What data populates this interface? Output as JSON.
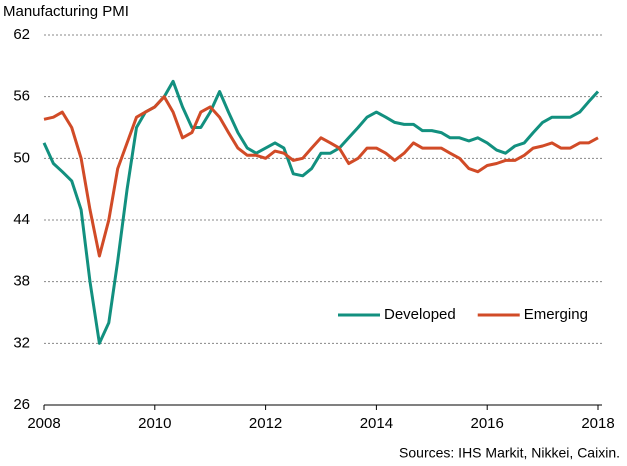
{
  "chart_data": {
    "type": "line",
    "title": "Manufacturing  PMI",
    "source": "Sources: IHS Markit, Nikkei, Caixin.",
    "x": [
      2008,
      2008.17,
      2008.33,
      2008.5,
      2008.67,
      2008.83,
      2009,
      2009.17,
      2009.33,
      2009.5,
      2009.67,
      2009.83,
      2010,
      2010.17,
      2010.33,
      2010.5,
      2010.67,
      2010.83,
      2011,
      2011.17,
      2011.33,
      2011.5,
      2011.67,
      2011.83,
      2012,
      2012.17,
      2012.33,
      2012.5,
      2012.67,
      2012.83,
      2013,
      2013.17,
      2013.33,
      2013.5,
      2013.67,
      2013.83,
      2014,
      2014.17,
      2014.33,
      2014.5,
      2014.67,
      2014.83,
      2015,
      2015.17,
      2015.33,
      2015.5,
      2015.67,
      2015.83,
      2016,
      2016.17,
      2016.33,
      2016.5,
      2016.67,
      2016.83,
      2017,
      2017.17,
      2017.33,
      2017.5,
      2017.67,
      2017.83,
      2018
    ],
    "series": [
      {
        "name": "Developed",
        "color": "#12907f",
        "values": [
          51.5,
          49.5,
          48.7,
          47.8,
          45,
          38,
          32,
          34,
          40,
          47,
          53,
          54.5,
          55,
          56,
          57.5,
          55,
          53,
          53,
          54.5,
          56.5,
          54.5,
          52.5,
          51,
          50.5,
          51,
          51.5,
          51,
          48.5,
          48.3,
          49,
          50.5,
          50.5,
          51,
          52,
          53,
          54,
          54.5,
          54,
          53.5,
          53.3,
          53.3,
          52.7,
          52.7,
          52.5,
          52,
          52,
          51.7,
          52,
          51.5,
          50.8,
          50.5,
          51.2,
          51.5,
          52.5,
          53.5,
          54,
          54,
          54,
          54.5,
          55.5,
          56.5
        ]
      },
      {
        "name": "Emerging",
        "color": "#d14b27",
        "values": [
          53.8,
          54,
          54.5,
          53,
          50,
          45,
          40.5,
          44,
          49,
          51.5,
          54,
          54.5,
          55,
          56,
          54.5,
          52,
          52.5,
          54.5,
          55,
          54,
          52.5,
          51,
          50.3,
          50.3,
          50,
          50.7,
          50.5,
          49.8,
          50,
          51,
          52,
          51.5,
          51,
          49.5,
          50,
          51,
          51,
          50.5,
          49.8,
          50.5,
          51.5,
          51,
          51,
          51,
          50.5,
          50,
          49,
          48.7,
          49.3,
          49.5,
          49.8,
          49.8,
          50.3,
          51,
          51.2,
          51.5,
          51,
          51,
          51.5,
          51.5,
          52
        ]
      }
    ],
    "xlim": [
      2008,
      2018
    ],
    "xticks": [
      2008,
      2010,
      2012,
      2014,
      2016,
      2018
    ],
    "ylim": [
      26,
      62
    ],
    "yticks": [
      26,
      32,
      38,
      44,
      50,
      56,
      62
    ],
    "grid": true,
    "legend": "lower right"
  }
}
